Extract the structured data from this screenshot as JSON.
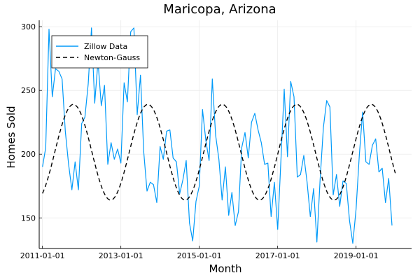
{
  "chart_data": {
    "type": "line",
    "title": "Maricopa, Arizona",
    "xlabel": "Month",
    "ylabel": "Homes Sold",
    "xlim": [
      "2010-12-01",
      "2020-06-01"
    ],
    "ylim": [
      126,
      305
    ],
    "x_ticks": [
      "2011-01-01",
      "2013-01-01",
      "2015-01-01",
      "2017-01-01",
      "2019-01-01"
    ],
    "y_ticks": [
      150,
      200,
      250,
      300
    ],
    "grid": true,
    "legend_position": "top-left",
    "colors": {
      "zillow": "#009AF9",
      "fit": "#000000",
      "grid": "#EBEBEB",
      "axis": "#000000"
    },
    "series": [
      {
        "name": "Zillow Data",
        "style": "solid",
        "points": [
          [
            "2011-01-01",
            190
          ],
          [
            "2011-02-01",
            205
          ],
          [
            "2011-03-01",
            298
          ],
          [
            "2011-04-01",
            245
          ],
          [
            "2011-05-01",
            267
          ],
          [
            "2011-06-01",
            265
          ],
          [
            "2011-07-01",
            259
          ],
          [
            "2011-08-01",
            218
          ],
          [
            "2011-09-01",
            192
          ],
          [
            "2011-10-01",
            172
          ],
          [
            "2011-11-01",
            194
          ],
          [
            "2011-12-01",
            172
          ],
          [
            "2012-01-01",
            224
          ],
          [
            "2012-02-01",
            229
          ],
          [
            "2012-03-01",
            255
          ],
          [
            "2012-04-01",
            299
          ],
          [
            "2012-05-01",
            240
          ],
          [
            "2012-06-01",
            273
          ],
          [
            "2012-07-01",
            238
          ],
          [
            "2012-08-01",
            254
          ],
          [
            "2012-09-01",
            192
          ],
          [
            "2012-10-01",
            209
          ],
          [
            "2012-11-01",
            196
          ],
          [
            "2012-12-01",
            204
          ],
          [
            "2013-01-01",
            193
          ],
          [
            "2013-02-01",
            256
          ],
          [
            "2013-03-01",
            241
          ],
          [
            "2013-04-01",
            296
          ],
          [
            "2013-05-01",
            299
          ],
          [
            "2013-06-01",
            231
          ],
          [
            "2013-07-01",
            262
          ],
          [
            "2013-08-01",
            202
          ],
          [
            "2013-09-01",
            171
          ],
          [
            "2013-10-01",
            178
          ],
          [
            "2013-11-01",
            176
          ],
          [
            "2013-12-01",
            162
          ],
          [
            "2014-01-01",
            206
          ],
          [
            "2014-02-01",
            196
          ],
          [
            "2014-03-01",
            218
          ],
          [
            "2014-04-01",
            219
          ],
          [
            "2014-05-01",
            197
          ],
          [
            "2014-06-01",
            194
          ],
          [
            "2014-07-01",
            169
          ],
          [
            "2014-08-01",
            180
          ],
          [
            "2014-09-01",
            195
          ],
          [
            "2014-10-01",
            146
          ],
          [
            "2014-11-01",
            132
          ],
          [
            "2014-12-01",
            163
          ],
          [
            "2015-01-01",
            175
          ],
          [
            "2015-02-01",
            235
          ],
          [
            "2015-03-01",
            211
          ],
          [
            "2015-04-01",
            195
          ],
          [
            "2015-05-01",
            259
          ],
          [
            "2015-06-01",
            215
          ],
          [
            "2015-07-01",
            196
          ],
          [
            "2015-08-01",
            164
          ],
          [
            "2015-09-01",
            190
          ],
          [
            "2015-10-01",
            152
          ],
          [
            "2015-11-01",
            170
          ],
          [
            "2015-12-01",
            144
          ],
          [
            "2016-01-01",
            155
          ],
          [
            "2016-02-01",
            205
          ],
          [
            "2016-03-01",
            217
          ],
          [
            "2016-04-01",
            197
          ],
          [
            "2016-05-01",
            225
          ],
          [
            "2016-06-01",
            232
          ],
          [
            "2016-07-01",
            219
          ],
          [
            "2016-08-01",
            209
          ],
          [
            "2016-09-01",
            192
          ],
          [
            "2016-10-01",
            193
          ],
          [
            "2016-11-01",
            151
          ],
          [
            "2016-12-01",
            178
          ],
          [
            "2017-01-01",
            141
          ],
          [
            "2017-02-01",
            195
          ],
          [
            "2017-03-01",
            251
          ],
          [
            "2017-04-01",
            198
          ],
          [
            "2017-05-01",
            257
          ],
          [
            "2017-06-01",
            245
          ],
          [
            "2017-07-01",
            182
          ],
          [
            "2017-08-01",
            184
          ],
          [
            "2017-09-01",
            199
          ],
          [
            "2017-10-01",
            178
          ],
          [
            "2017-11-01",
            151
          ],
          [
            "2017-12-01",
            173
          ],
          [
            "2018-01-01",
            131
          ],
          [
            "2018-02-01",
            180
          ],
          [
            "2018-03-01",
            221
          ],
          [
            "2018-04-01",
            242
          ],
          [
            "2018-05-01",
            237
          ],
          [
            "2018-06-01",
            168
          ],
          [
            "2018-07-01",
            184
          ],
          [
            "2018-08-01",
            159
          ],
          [
            "2018-09-01",
            179
          ],
          [
            "2018-10-01",
            177
          ],
          [
            "2018-11-01",
            148
          ],
          [
            "2018-12-01",
            130
          ],
          [
            "2019-01-01",
            157
          ],
          [
            "2019-02-01",
            199
          ],
          [
            "2019-03-01",
            233
          ],
          [
            "2019-04-01",
            194
          ],
          [
            "2019-05-01",
            192
          ],
          [
            "2019-06-01",
            207
          ],
          [
            "2019-07-01",
            212
          ],
          [
            "2019-08-01",
            186
          ],
          [
            "2019-09-01",
            189
          ],
          [
            "2019-10-01",
            162
          ],
          [
            "2019-11-01",
            181
          ],
          [
            "2019-12-01",
            144
          ]
        ]
      },
      {
        "name": "Newton-Gauss",
        "style": "dashed",
        "model": {
          "mean": 201.5,
          "amplitude": 37.5,
          "period_years": 1.9,
          "first_peak": "2011-10-15",
          "x_start": "2011-01-01",
          "x_end": "2020-01-01"
        }
      }
    ]
  }
}
